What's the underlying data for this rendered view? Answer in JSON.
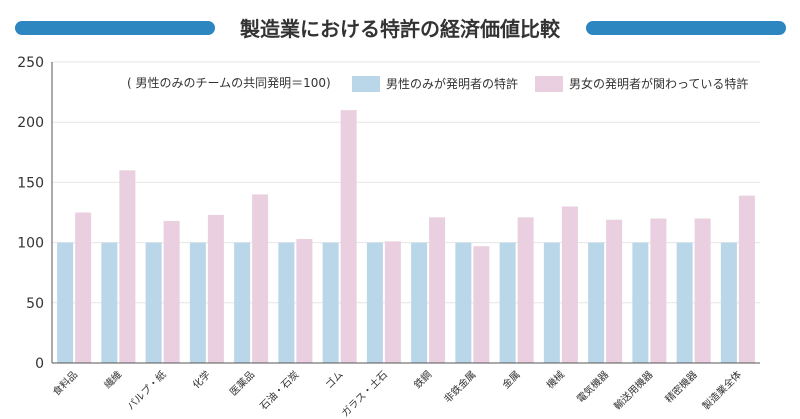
{
  "chart_data": {
    "type": "bar",
    "title": "製造業における特許の経済価値比較",
    "note": "( 男性のみのチームの共同発明＝100)",
    "categories": [
      "食料品",
      "繊維",
      "パルプ・紙",
      "化学",
      "医薬品",
      "石油・石炭",
      "ゴム",
      "ガラス・土石",
      "鉄鋼",
      "非鉄金属",
      "金属",
      "機械",
      "電気機器",
      "輸送用機器",
      "精密機器",
      "製造業全体"
    ],
    "series": [
      {
        "name": "男性のみが発明者の特許",
        "color": "#b9d7e8",
        "values": [
          100,
          100,
          100,
          100,
          100,
          100,
          100,
          100,
          100,
          100,
          100,
          100,
          100,
          100,
          100,
          100
        ]
      },
      {
        "name": "男女の発明者が関わっている特許",
        "color": "#e9cfdf",
        "values": [
          125,
          160,
          118,
          123,
          140,
          103,
          210,
          101,
          121,
          97,
          121,
          130,
          119,
          120,
          120,
          139
        ]
      }
    ],
    "ylim": [
      0,
      250
    ],
    "yticks": [
      "0",
      "50",
      "100",
      "150",
      "200",
      "250"
    ],
    "grid": true,
    "legend_position": "top-right",
    "title_bar_color": "#2e86c1"
  }
}
